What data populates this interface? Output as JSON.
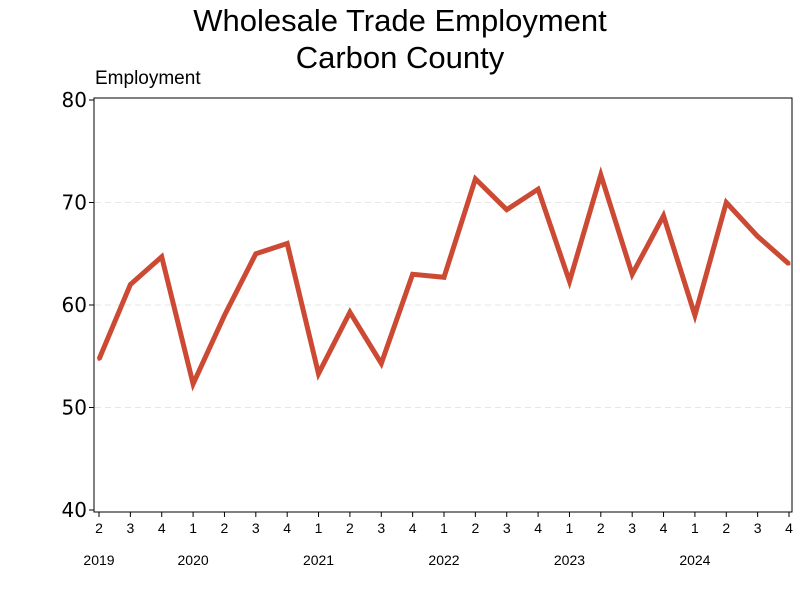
{
  "chart_data": {
    "type": "line",
    "title": [
      "Wholesale Trade Employment",
      "Carbon County"
    ],
    "ylabel": "Employment",
    "xlabel": "",
    "ylim": [
      40,
      80
    ],
    "yticks": [
      40,
      50,
      60,
      70,
      80
    ],
    "grid": "horizontal dashed",
    "line_color": "#cc4a33",
    "grid_color": "#e6e6e6",
    "x": [
      {
        "quarter": "2",
        "year": "2019"
      },
      {
        "quarter": "3",
        "year": "2019"
      },
      {
        "quarter": "4",
        "year": "2019"
      },
      {
        "quarter": "1",
        "year": "2020"
      },
      {
        "quarter": "2",
        "year": "2020"
      },
      {
        "quarter": "3",
        "year": "2020"
      },
      {
        "quarter": "4",
        "year": "2020"
      },
      {
        "quarter": "1",
        "year": "2021"
      },
      {
        "quarter": "2",
        "year": "2021"
      },
      {
        "quarter": "3",
        "year": "2021"
      },
      {
        "quarter": "4",
        "year": "2021"
      },
      {
        "quarter": "1",
        "year": "2022"
      },
      {
        "quarter": "2",
        "year": "2022"
      },
      {
        "quarter": "3",
        "year": "2022"
      },
      {
        "quarter": "4",
        "year": "2022"
      },
      {
        "quarter": "1",
        "year": "2023"
      },
      {
        "quarter": "2",
        "year": "2023"
      },
      {
        "quarter": "3",
        "year": "2023"
      },
      {
        "quarter": "4",
        "year": "2023"
      },
      {
        "quarter": "1",
        "year": "2024"
      },
      {
        "quarter": "2",
        "year": "2024"
      },
      {
        "quarter": "3",
        "year": "2024"
      },
      {
        "quarter": "4",
        "year": "2024"
      }
    ],
    "series": [
      {
        "values": [
          54.7,
          62,
          64.7,
          52.3,
          59,
          65,
          66,
          53.3,
          59.3,
          54.3,
          63,
          62.7,
          72.3,
          69.3,
          71.3,
          62.3,
          72.7,
          63,
          68.7,
          59,
          70,
          66.7,
          64
        ]
      }
    ],
    "year_labels": [
      "2019",
      "2020",
      "2021",
      "2022",
      "2023",
      "2024"
    ]
  }
}
